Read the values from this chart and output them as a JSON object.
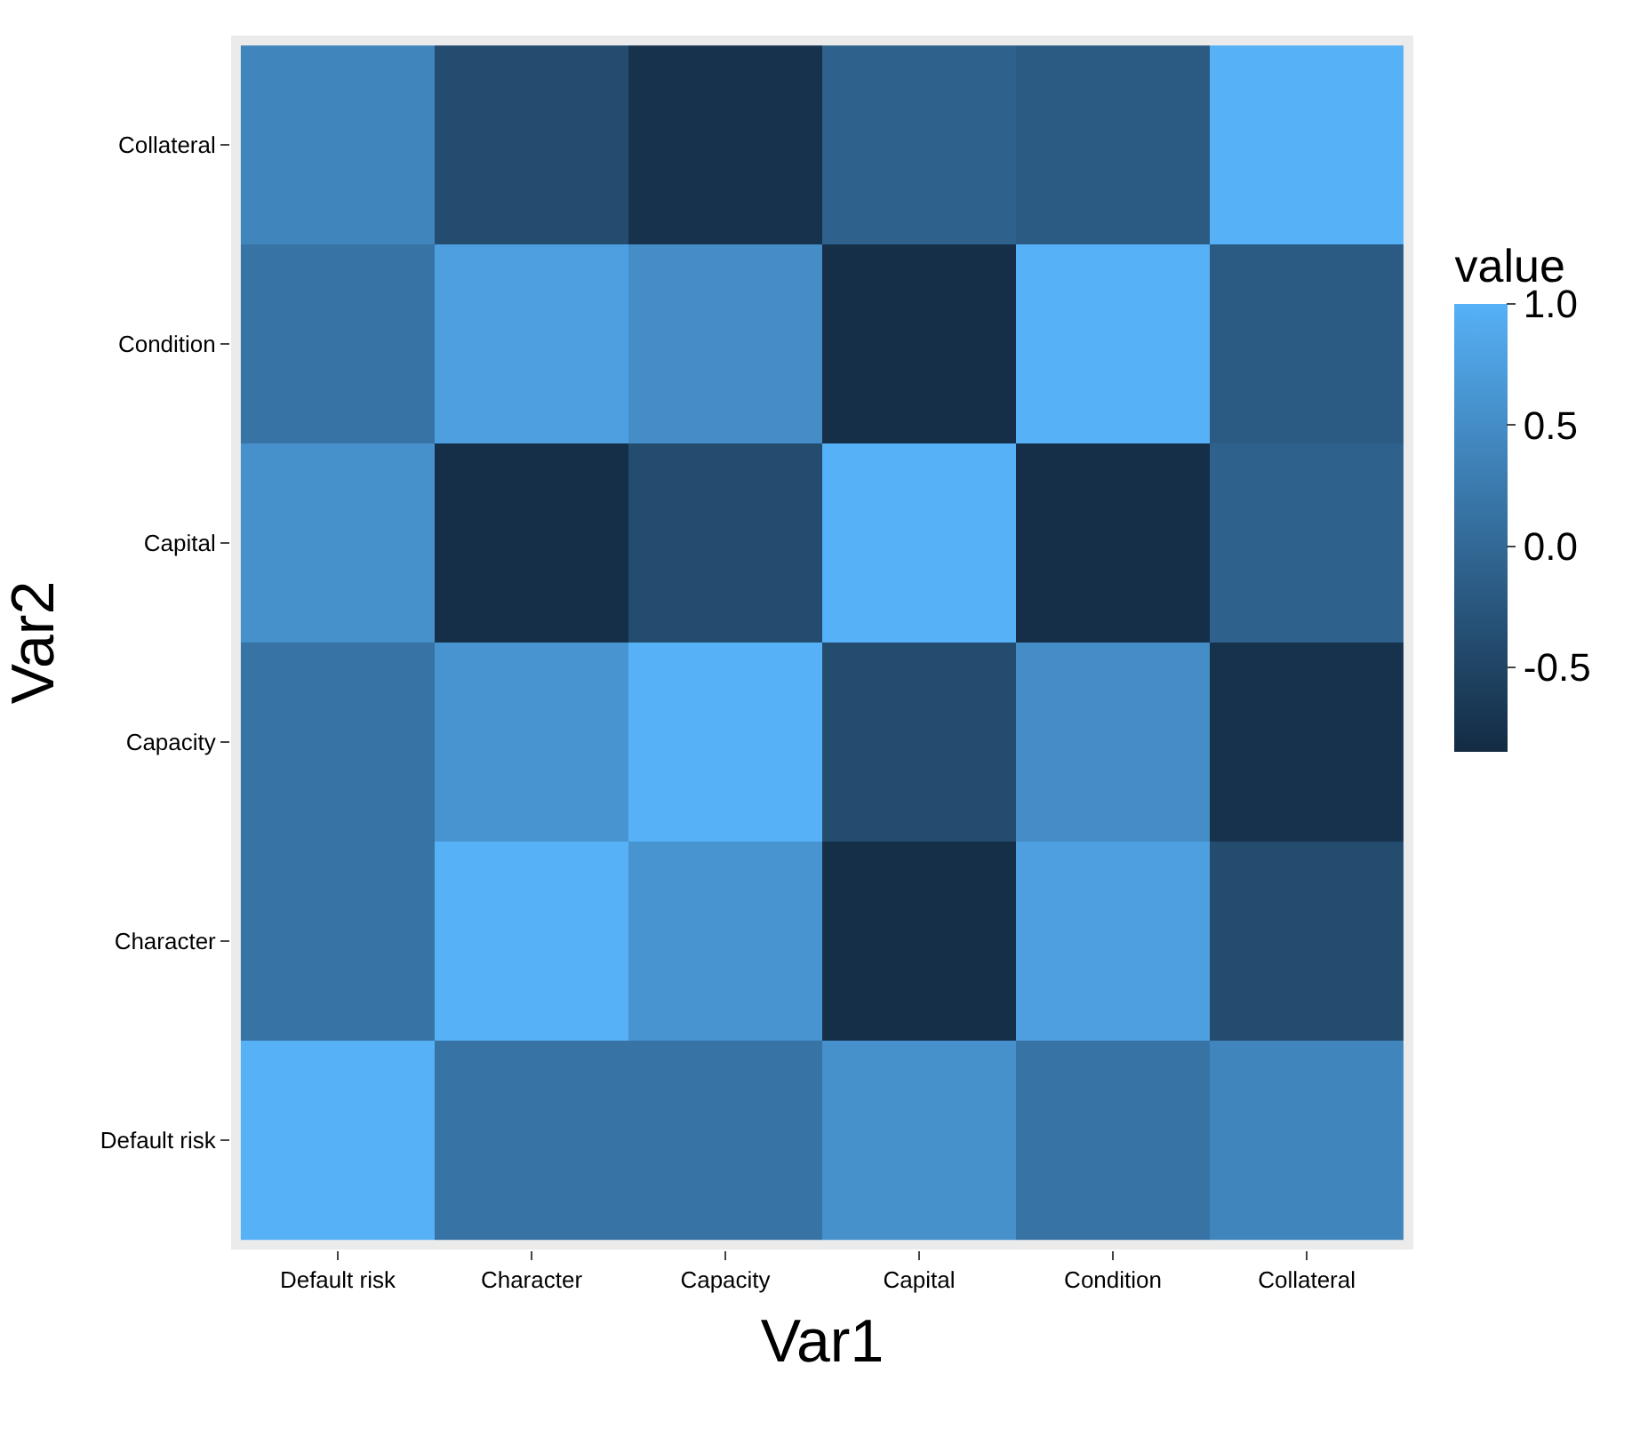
{
  "chart_data": {
    "type": "heatmap",
    "xlabel": "Var1",
    "ylabel": "Var2",
    "clabel": "value",
    "categories": [
      "Default risk",
      "Character",
      "Capacity",
      "Capital",
      "Condition",
      "Collateral"
    ],
    "y_categories": [
      "Collateral",
      "Condition",
      "Capital",
      "Capacity",
      "Character",
      "Default risk"
    ],
    "cells": [
      [
        0.4,
        -0.4,
        -0.75,
        -0.1,
        -0.2,
        1.0
      ],
      [
        0.15,
        0.75,
        0.5,
        -0.8,
        1.0,
        -0.2
      ],
      [
        0.55,
        -0.8,
        -0.4,
        1.0,
        -0.8,
        -0.1
      ],
      [
        0.15,
        0.6,
        1.0,
        -0.4,
        0.5,
        -0.75
      ],
      [
        0.15,
        1.0,
        0.6,
        -0.8,
        0.75,
        -0.4
      ],
      [
        1.0,
        0.15,
        0.15,
        0.55,
        0.15,
        0.4
      ]
    ],
    "colors": [
      "#132b43",
      "#56b1f7"
    ],
    "clim": [
      -0.85,
      1.0
    ],
    "cticks": [
      {
        "value": -0.5,
        "label": "-0.5"
      },
      {
        "value": 0,
        "label": "0.0"
      },
      {
        "value": 0.5,
        "label": "0.5"
      },
      {
        "value": 1.0,
        "label": "1.0"
      }
    ]
  }
}
